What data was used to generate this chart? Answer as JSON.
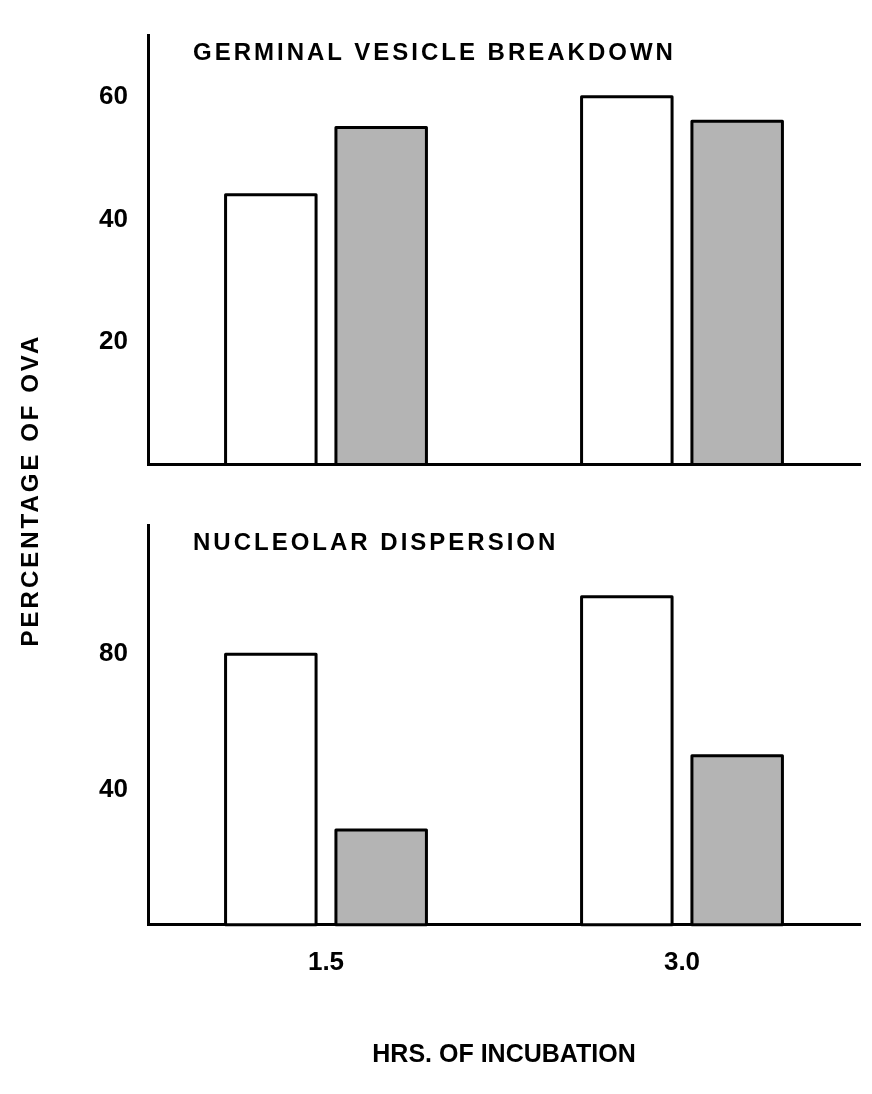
{
  "chart_data": [
    {
      "type": "bar",
      "title": "GERMINAL VESICLE BREAKDOWN",
      "ylabel": "PERCENTAGE OF OVA",
      "categories": [
        "1.5",
        "3.0"
      ],
      "series": [
        {
          "color": "#ffffff",
          "values": [
            44,
            60
          ]
        },
        {
          "color": "#b4b4b4",
          "values": [
            55,
            56
          ]
        }
      ],
      "ylim": [
        0,
        70
      ],
      "yticks": [
        20,
        40,
        60
      ],
      "tick_labels": "y",
      "grid": false,
      "legend": false
    },
    {
      "type": "bar",
      "title": "NUCLEOLAR DISPERSION",
      "xlabel": "HRS. OF INCUBATION",
      "categories": [
        "1.5",
        "3.0"
      ],
      "series": [
        {
          "color": "#ffffff",
          "values": [
            80,
            97
          ]
        },
        {
          "color": "#b4b4b4",
          "values": [
            28,
            50
          ]
        }
      ],
      "ylim": [
        0,
        118
      ],
      "yticks": [
        40,
        80
      ],
      "grid": false,
      "legend": false
    }
  ]
}
